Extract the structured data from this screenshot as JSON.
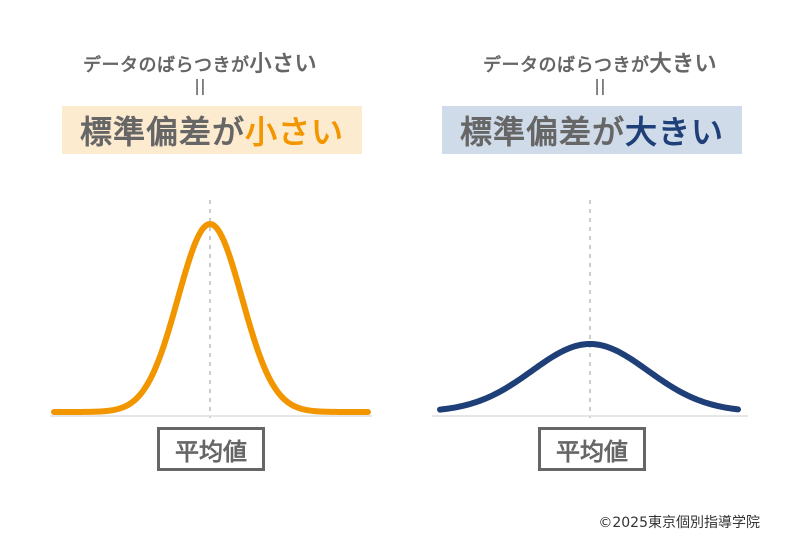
{
  "left": {
    "caption_prefix": "データのばらつきが",
    "caption_emph": "小さい",
    "eq": "||",
    "title_prefix": "標準偏差が",
    "title_emph": "小さい",
    "mean_label": "平均値",
    "curve_color": "#f29600",
    "spread": "small"
  },
  "right": {
    "caption_prefix": "データのばらつきが",
    "caption_emph": "大きい",
    "eq": "||",
    "title_prefix": "標準偏差が",
    "title_emph": "大きい",
    "mean_label": "平均値",
    "curve_color": "#1e3f78",
    "spread": "large"
  },
  "copyright": "©2025東京個別指導学院"
}
